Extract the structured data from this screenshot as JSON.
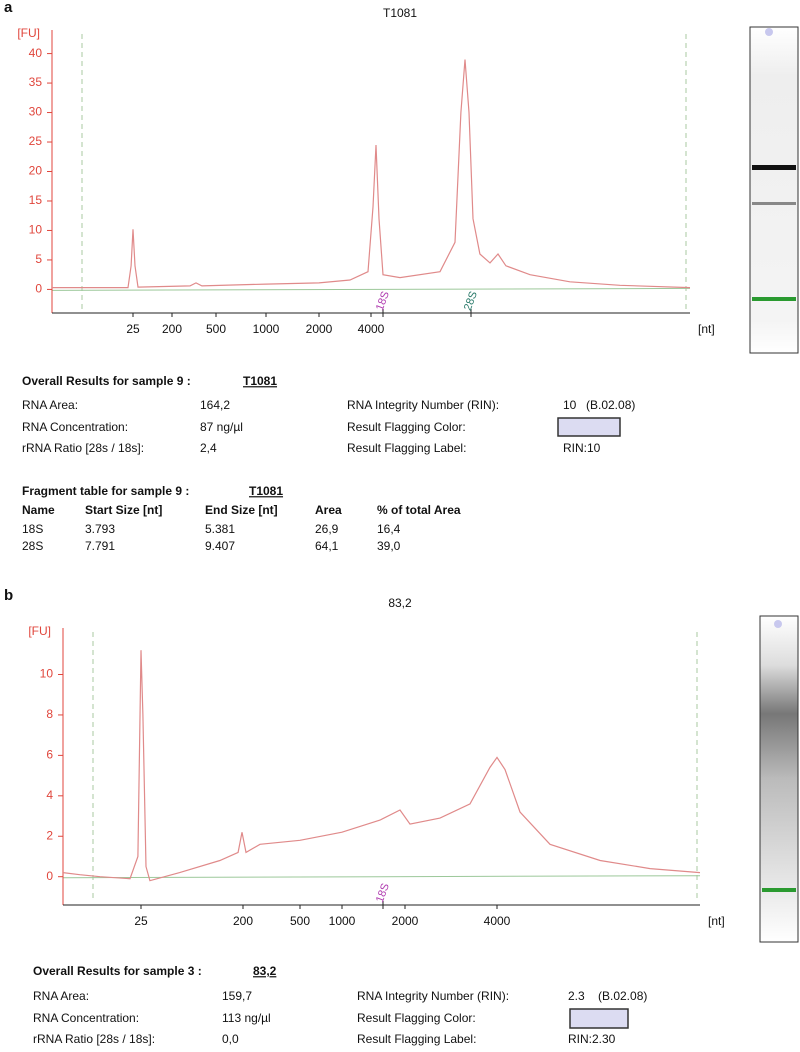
{
  "chart_data": [
    {
      "type": "line",
      "title": "T1081",
      "ylabel": "[FU]",
      "xlabel": "[nt]",
      "color": "#e08a8a",
      "x": [
        0.3,
        4.1,
        19,
        22.5,
        25,
        27.8,
        32.6,
        291,
        330,
        373,
        1000,
        2000,
        3024,
        3843,
        4105,
        4268,
        4437,
        4673,
        5826,
        9780,
        11880,
        12830,
        13520,
        14240,
        15000,
        16420,
        18700,
        20740,
        23000,
        31400,
        52700,
        100800,
        250000
      ],
      "values": [
        0.3,
        0.3,
        0.3,
        4,
        10.2,
        4,
        0.4,
        0.6,
        1.1,
        0.6,
        0.9,
        1.1,
        1.6,
        3,
        14,
        24.5,
        12,
        2.5,
        2,
        3,
        8,
        30,
        39,
        30,
        12,
        6,
        4.5,
        6,
        4,
        2.5,
        1.3,
        0.7,
        0.3
      ],
      "xlim": [
        0.3,
        250000
      ],
      "xticks": [
        25,
        200,
        500,
        1000,
        2000,
        4000
      ],
      "ylim": [
        -4,
        44
      ],
      "yticks": [
        0,
        5,
        10,
        15,
        20,
        25,
        30,
        35,
        40
      ],
      "annotations": [
        "18S",
        "28S"
      ]
    },
    {
      "type": "line",
      "title": "83,2",
      "ylabel": "[FU]",
      "xlabel": "[nt]",
      "color": "#e08a8a",
      "x": [
        1,
        2.0,
        4.6,
        15.9,
        22,
        25,
        26,
        27.7,
        30,
        55,
        125,
        181,
        196,
        210,
        263,
        500,
        1000,
        1519,
        1893,
        2077,
        2603,
        3263,
        3793,
        4000,
        4541,
        5760,
        9270,
        20500,
        45300,
        100000
      ],
      "values": [
        0.2,
        0.1,
        0,
        -0.1,
        1,
        11.2,
        8,
        0.5,
        -0.2,
        0.2,
        0.8,
        1.2,
        2.2,
        1.2,
        1.6,
        1.8,
        2.2,
        2.8,
        3.3,
        2.6,
        2.9,
        3.6,
        5.4,
        5.9,
        5.3,
        3.2,
        1.6,
        0.8,
        0.4,
        0.2
      ],
      "xlim": [
        1,
        100000
      ],
      "xticks": [
        25,
        200,
        500,
        1000,
        2000,
        4000
      ],
      "ylim": [
        -1.4,
        12.3
      ],
      "yticks": [
        0,
        2,
        4,
        6,
        8,
        10
      ],
      "annotations": [
        "18S"
      ]
    }
  ],
  "panels": [
    {
      "label": "a",
      "results": {
        "title": "Overall Results for sample 9 :",
        "sample": "T1081",
        "left": [
          [
            "RNA Area:",
            "164,2"
          ],
          [
            "RNA Concentration:",
            "87 ng/µl"
          ],
          [
            "rRNA Ratio [28s / 18s]:",
            "2,4"
          ]
        ],
        "rin": [
          "RNA Integrity Number (RIN):",
          "10",
          "(B.02.08)"
        ],
        "flag_color": "Result Flagging Color:",
        "flag_label": [
          "Result Flagging Label:",
          "RIN:10"
        ]
      },
      "fragments": {
        "title": "Fragment table for sample 9 :",
        "sample": "T1081",
        "header": [
          "Name",
          "Start Size [nt]",
          "End Size [nt]",
          "Area",
          "% of total Area"
        ],
        "rows": [
          [
            "18S",
            "3.793",
            "5.381",
            "26,9",
            "16,4"
          ],
          [
            "28S",
            "7.791",
            "9.407",
            "64,1",
            "39,0"
          ]
        ]
      }
    },
    {
      "label": "b",
      "results": {
        "title": "Overall Results for sample 3 :",
        "sample": "83,2",
        "left": [
          [
            "RNA Area:",
            "159,7"
          ],
          [
            "RNA Concentration:",
            "113 ng/µl"
          ],
          [
            "rRNA Ratio [28s / 18s]:",
            "0,0"
          ]
        ],
        "rin": [
          "RNA Integrity Number (RIN):",
          "2.3",
          "(B.02.08)"
        ],
        "flag_color": "Result Flagging Color:",
        "flag_label": [
          "Result Flagging Label:",
          "RIN:2.30"
        ]
      }
    }
  ]
}
